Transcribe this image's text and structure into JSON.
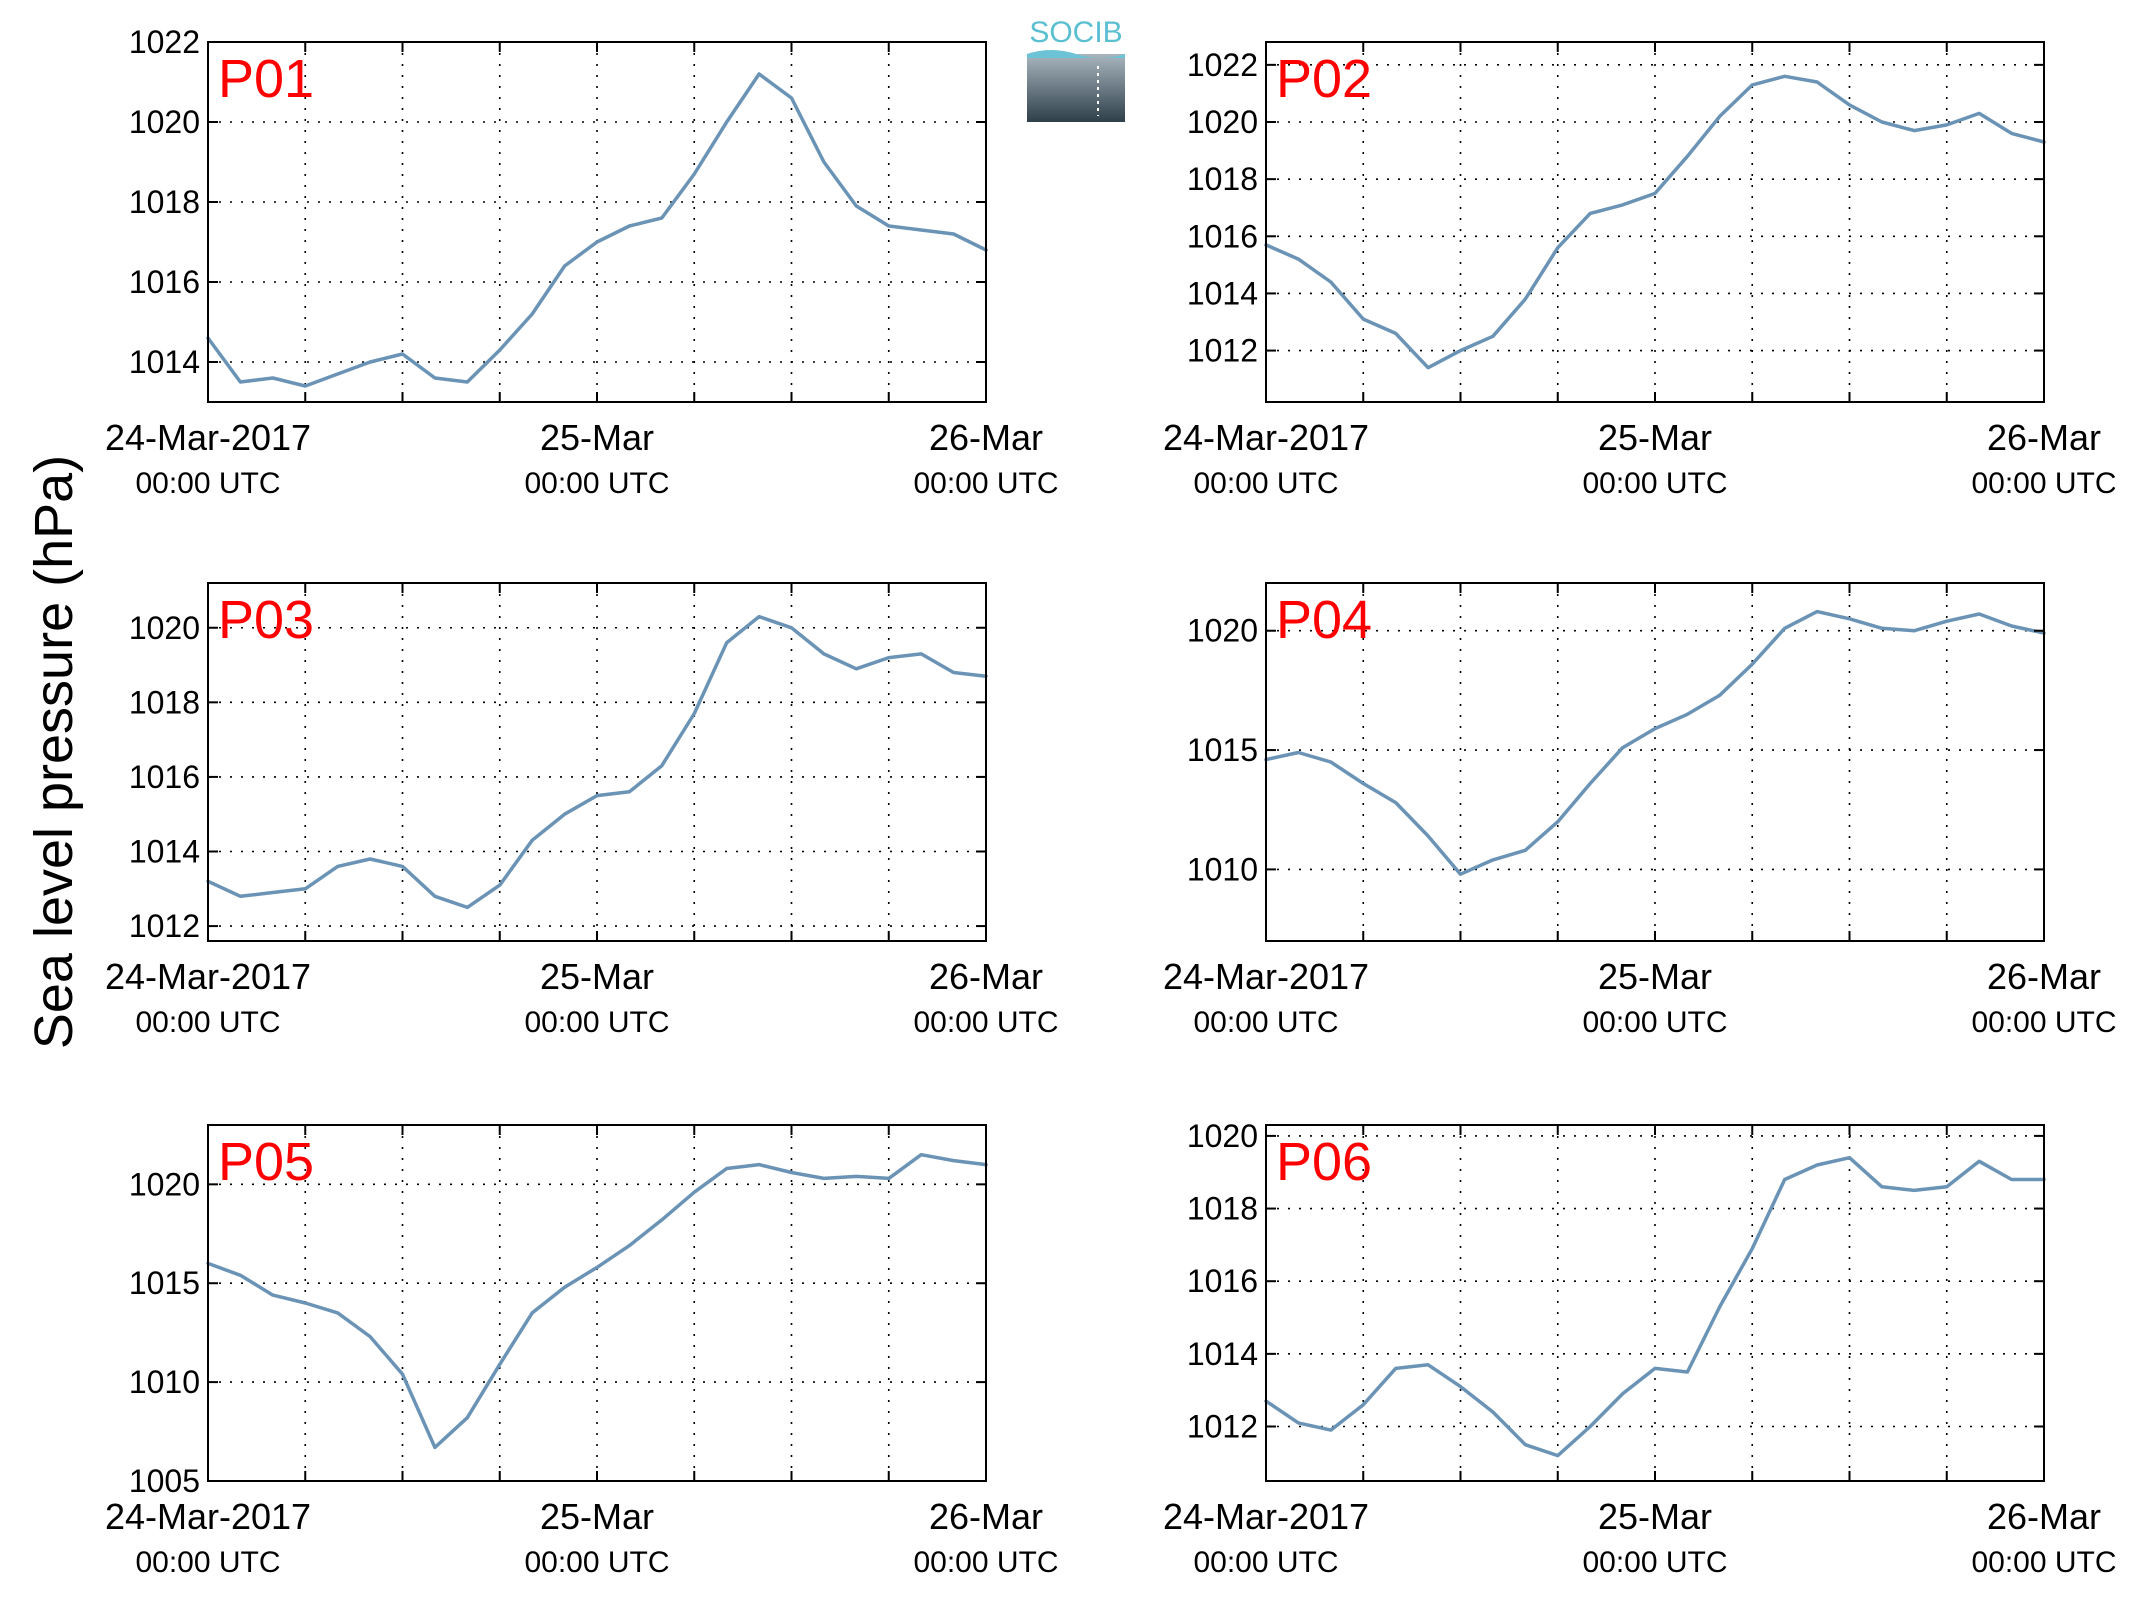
{
  "figure": {
    "ylabel": "Sea level pressure (hPa)",
    "logo_text": "SOCIB",
    "line_color": "#6a93b5",
    "label_color": "#ff0000",
    "tick_primary": [
      "24-Mar-2017",
      "25-Mar",
      "26-Mar"
    ],
    "tick_secondary": [
      "00:00 UTC",
      "00:00 UTC",
      "00:00 UTC"
    ]
  },
  "chart_data": [
    {
      "type": "line",
      "label": "P01",
      "x": [
        0,
        2,
        4,
        6,
        8,
        10,
        12,
        14,
        16,
        18,
        20,
        22,
        24,
        26,
        28,
        30,
        32,
        34,
        36,
        38,
        40,
        42,
        44,
        46,
        48
      ],
      "y": [
        1014.6,
        1013.5,
        1013.6,
        1013.4,
        1013.7,
        1014.0,
        1014.2,
        1013.6,
        1013.5,
        1014.3,
        1015.2,
        1016.4,
        1017.0,
        1017.4,
        1017.6,
        1018.7,
        1020.0,
        1021.2,
        1020.6,
        1019.0,
        1017.9,
        1017.4,
        1017.3,
        1017.2,
        1016.8
      ],
      "ylim": [
        1013,
        1022
      ],
      "yticks": [
        1014,
        1016,
        1018,
        1020,
        1022
      ]
    },
    {
      "type": "line",
      "label": "P02",
      "x": [
        0,
        2,
        4,
        6,
        8,
        10,
        12,
        14,
        16,
        18,
        20,
        22,
        24,
        26,
        28,
        30,
        32,
        34,
        36,
        38,
        40,
        42,
        44,
        46,
        48
      ],
      "y": [
        1015.7,
        1015.2,
        1014.4,
        1013.1,
        1012.6,
        1011.4,
        1012.0,
        1012.5,
        1013.8,
        1015.6,
        1016.8,
        1017.1,
        1017.5,
        1018.8,
        1020.2,
        1021.3,
        1021.6,
        1021.4,
        1020.6,
        1020.0,
        1019.7,
        1019.9,
        1020.3,
        1019.6,
        1019.3
      ],
      "ylim": [
        1010.2,
        1022.8
      ],
      "yticks": [
        1012,
        1014,
        1016,
        1018,
        1020,
        1022
      ]
    },
    {
      "type": "line",
      "label": "P03",
      "x": [
        0,
        2,
        4,
        6,
        8,
        10,
        12,
        14,
        16,
        18,
        20,
        22,
        24,
        26,
        28,
        30,
        32,
        34,
        36,
        38,
        40,
        42,
        44,
        46,
        48
      ],
      "y": [
        1013.2,
        1012.8,
        1012.9,
        1013.0,
        1013.6,
        1013.8,
        1013.6,
        1012.8,
        1012.5,
        1013.1,
        1014.3,
        1015.0,
        1015.5,
        1015.6,
        1016.3,
        1017.7,
        1019.6,
        1020.3,
        1020.0,
        1019.3,
        1018.9,
        1019.2,
        1019.3,
        1018.8,
        1018.7
      ],
      "ylim": [
        1011.6,
        1021.2
      ],
      "yticks": [
        1012,
        1014,
        1016,
        1018,
        1020
      ]
    },
    {
      "type": "line",
      "label": "P04",
      "x": [
        0,
        2,
        4,
        6,
        8,
        10,
        12,
        14,
        16,
        18,
        20,
        22,
        24,
        26,
        28,
        30,
        32,
        34,
        36,
        38,
        40,
        42,
        44,
        46,
        48
      ],
      "y": [
        1014.6,
        1014.9,
        1014.5,
        1013.6,
        1012.8,
        1011.4,
        1009.8,
        1010.4,
        1010.8,
        1012.0,
        1013.6,
        1015.1,
        1015.9,
        1016.5,
        1017.3,
        1018.6,
        1020.1,
        1020.8,
        1020.5,
        1020.1,
        1020.0,
        1020.4,
        1020.7,
        1020.2,
        1019.9
      ],
      "ylim": [
        1007,
        1022
      ],
      "yticks": [
        1010,
        1015,
        1020
      ]
    },
    {
      "type": "line",
      "label": "P05",
      "x": [
        0,
        2,
        4,
        6,
        8,
        10,
        12,
        14,
        16,
        18,
        20,
        22,
        24,
        26,
        28,
        30,
        32,
        34,
        36,
        38,
        40,
        42,
        44,
        46,
        48
      ],
      "y": [
        1016.0,
        1015.4,
        1014.4,
        1014.0,
        1013.5,
        1012.3,
        1010.4,
        1006.7,
        1008.2,
        1010.9,
        1013.5,
        1014.8,
        1015.8,
        1016.9,
        1018.2,
        1019.6,
        1020.8,
        1021.0,
        1020.6,
        1020.3,
        1020.4,
        1020.3,
        1021.5,
        1021.2,
        1021.0
      ],
      "ylim": [
        1005,
        1023
      ],
      "yticks": [
        1005,
        1010,
        1015,
        1020
      ]
    },
    {
      "type": "line",
      "label": "P06",
      "x": [
        0,
        2,
        4,
        6,
        8,
        10,
        12,
        14,
        16,
        18,
        20,
        22,
        24,
        26,
        28,
        30,
        32,
        34,
        36,
        38,
        40,
        42,
        44,
        46,
        48
      ],
      "y": [
        1012.7,
        1012.1,
        1011.9,
        1012.6,
        1013.6,
        1013.7,
        1013.1,
        1012.4,
        1011.5,
        1011.2,
        1012.0,
        1012.9,
        1013.6,
        1013.5,
        1015.3,
        1016.9,
        1018.8,
        1019.2,
        1019.4,
        1018.6,
        1018.5,
        1018.6,
        1019.3,
        1018.8,
        1018.8
      ],
      "ylim": [
        1010.5,
        1020.3
      ],
      "yticks": [
        1012,
        1014,
        1016,
        1018,
        1020
      ]
    }
  ]
}
